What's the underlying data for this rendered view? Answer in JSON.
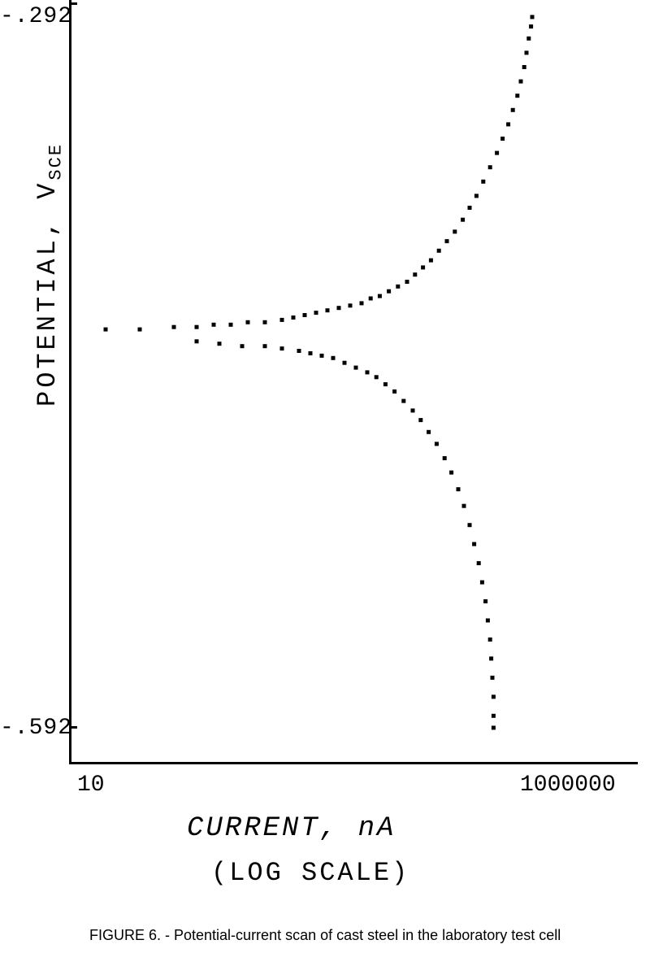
{
  "chart": {
    "type": "scatter",
    "y_axis": {
      "label_main": "POTENTIAL,",
      "label_sub": "V",
      "label_subscript": "SCE",
      "tick_top": "-.292",
      "tick_bottom": "-.592",
      "ylim": [
        -0.592,
        -0.292
      ],
      "fontsize": 32
    },
    "x_axis": {
      "label_main": "CURRENT,",
      "label_unit": "nA",
      "label_sub": "(LOG SCALE)",
      "tick_left": "10",
      "tick_right": "1000000",
      "xlim_log": [
        1,
        6
      ],
      "fontsize": 34
    },
    "caption": "FIGURE 6. - Potential-current scan of cast steel in the laboratory test cell",
    "background_color": "#ffffff",
    "line_color": "#000000",
    "marker_size": 5,
    "data_upper": [
      [
        1.3,
        -0.425
      ],
      [
        1.6,
        -0.425
      ],
      [
        1.9,
        -0.424
      ],
      [
        2.1,
        -0.424
      ],
      [
        2.25,
        -0.423
      ],
      [
        2.4,
        -0.423
      ],
      [
        2.55,
        -0.422
      ],
      [
        2.7,
        -0.422
      ],
      [
        2.85,
        -0.421
      ],
      [
        2.95,
        -0.42
      ],
      [
        3.05,
        -0.419
      ],
      [
        3.15,
        -0.418
      ],
      [
        3.25,
        -0.417
      ],
      [
        3.35,
        -0.416
      ],
      [
        3.45,
        -0.415
      ],
      [
        3.55,
        -0.414
      ],
      [
        3.63,
        -0.412
      ],
      [
        3.71,
        -0.411
      ],
      [
        3.79,
        -0.409
      ],
      [
        3.87,
        -0.407
      ],
      [
        3.95,
        -0.405
      ],
      [
        4.02,
        -0.402
      ],
      [
        4.09,
        -0.399
      ],
      [
        4.16,
        -0.396
      ],
      [
        4.23,
        -0.392
      ],
      [
        4.3,
        -0.388
      ],
      [
        4.37,
        -0.384
      ],
      [
        4.44,
        -0.379
      ],
      [
        4.5,
        -0.374
      ],
      [
        4.56,
        -0.369
      ],
      [
        4.62,
        -0.363
      ],
      [
        4.68,
        -0.357
      ],
      [
        4.74,
        -0.351
      ],
      [
        4.79,
        -0.345
      ],
      [
        4.84,
        -0.339
      ],
      [
        4.88,
        -0.333
      ],
      [
        4.92,
        -0.327
      ],
      [
        4.95,
        -0.321
      ],
      [
        4.98,
        -0.315
      ],
      [
        5.0,
        -0.309
      ],
      [
        5.02,
        -0.303
      ],
      [
        5.04,
        -0.298
      ],
      [
        5.05,
        -0.294
      ]
    ],
    "data_lower": [
      [
        2.1,
        -0.43
      ],
      [
        2.3,
        -0.431
      ],
      [
        2.5,
        -0.432
      ],
      [
        2.7,
        -0.432
      ],
      [
        2.85,
        -0.433
      ],
      [
        3.0,
        -0.434
      ],
      [
        3.1,
        -0.435
      ],
      [
        3.2,
        -0.436
      ],
      [
        3.3,
        -0.437
      ],
      [
        3.4,
        -0.439
      ],
      [
        3.5,
        -0.441
      ],
      [
        3.6,
        -0.443
      ],
      [
        3.68,
        -0.445
      ],
      [
        3.76,
        -0.448
      ],
      [
        3.84,
        -0.451
      ],
      [
        3.92,
        -0.455
      ],
      [
        4.0,
        -0.459
      ],
      [
        4.07,
        -0.463
      ],
      [
        4.14,
        -0.468
      ],
      [
        4.21,
        -0.473
      ],
      [
        4.28,
        -0.479
      ],
      [
        4.34,
        -0.485
      ],
      [
        4.4,
        -0.492
      ],
      [
        4.45,
        -0.499
      ],
      [
        4.5,
        -0.507
      ],
      [
        4.54,
        -0.515
      ],
      [
        4.58,
        -0.523
      ],
      [
        4.61,
        -0.531
      ],
      [
        4.64,
        -0.539
      ],
      [
        4.66,
        -0.547
      ],
      [
        4.68,
        -0.555
      ],
      [
        4.69,
        -0.563
      ],
      [
        4.7,
        -0.571
      ],
      [
        4.71,
        -0.579
      ],
      [
        4.71,
        -0.587
      ],
      [
        4.71,
        -0.592
      ]
    ]
  }
}
